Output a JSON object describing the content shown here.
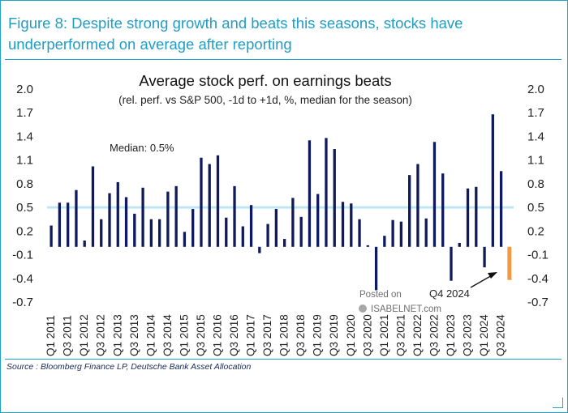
{
  "figure_title": "Figure 8: Despite strong growth and beats this seasons, stocks have underperformed on average after reporting",
  "source_note": "Source : Bloomberg Finance LP, Deutsche Bank Asset Allocation",
  "watermark": {
    "line1": "Posted on",
    "line2": "ISABELNET.com"
  },
  "colors": {
    "accent": "#1f9ec4",
    "bar": "#0f1a5c",
    "highlight_bar": "#f39a3a",
    "median_line": "#bfe6f3"
  },
  "chart_data": {
    "type": "bar",
    "title": "Average stock perf.  on earnings beats",
    "subtitle": "(rel. perf. vs S&P 500, -1d to +1d, %, median for the season)",
    "ylim": [
      -0.7,
      2.0
    ],
    "yticks": [
      "2.0",
      "1.7",
      "1.4",
      "1.1",
      "0.8",
      "0.5",
      "0.2",
      "-0.1",
      "-0.4",
      "-0.7"
    ],
    "ytick_values": [
      2.0,
      1.7,
      1.4,
      1.1,
      0.8,
      0.5,
      0.2,
      -0.1,
      -0.4,
      -0.7
    ],
    "median": {
      "value": 0.5,
      "label": "Median: 0.5%"
    },
    "highlight": {
      "index": 55,
      "label": "Q4 2024"
    },
    "xtick_labels": [
      "Q1 2011",
      "Q3 2011",
      "Q1 2012",
      "Q3 2012",
      "Q1 2013",
      "Q3 2013",
      "Q1 2014",
      "Q3 2014",
      "Q1 2015",
      "Q3 2015",
      "Q1 2016",
      "Q3 2016",
      "Q1 2017",
      "Q3 2017",
      "Q1 2018",
      "Q3 2018",
      "Q1 2019",
      "Q3 2019",
      "Q1 2020",
      "Q3 2020",
      "Q1 2021",
      "Q3 2021",
      "Q1 2022",
      "Q3 2022",
      "Q1 2023",
      "Q3 2023",
      "Q1 2024",
      "Q3 2024"
    ],
    "categories": [
      "Q1 2011",
      "Q2 2011",
      "Q3 2011",
      "Q4 2011",
      "Q1 2012",
      "Q2 2012",
      "Q3 2012",
      "Q4 2012",
      "Q1 2013",
      "Q2 2013",
      "Q3 2013",
      "Q4 2013",
      "Q1 2014",
      "Q2 2014",
      "Q3 2014",
      "Q4 2014",
      "Q1 2015",
      "Q2 2015",
      "Q3 2015",
      "Q4 2015",
      "Q1 2016",
      "Q2 2016",
      "Q3 2016",
      "Q4 2016",
      "Q1 2017",
      "Q2 2017",
      "Q3 2017",
      "Q4 2017",
      "Q1 2018",
      "Q2 2018",
      "Q3 2018",
      "Q4 2018",
      "Q1 2019",
      "Q2 2019",
      "Q3 2019",
      "Q4 2019",
      "Q1 2020",
      "Q2 2020",
      "Q3 2020",
      "Q4 2020",
      "Q1 2021",
      "Q2 2021",
      "Q3 2021",
      "Q4 2021",
      "Q1 2022",
      "Q2 2022",
      "Q3 2022",
      "Q4 2022",
      "Q1 2023",
      "Q2 2023",
      "Q3 2023",
      "Q4 2023",
      "Q1 2024",
      "Q2 2024",
      "Q3 2024",
      "Q4 2024"
    ],
    "values": [
      0.27,
      0.56,
      0.56,
      0.72,
      0.08,
      1.02,
      0.35,
      0.68,
      0.82,
      0.63,
      0.42,
      0.75,
      0.35,
      0.35,
      0.7,
      0.77,
      0.19,
      0.48,
      1.13,
      1.05,
      1.16,
      0.37,
      0.77,
      0.26,
      0.53,
      -0.08,
      0.29,
      0.48,
      0.1,
      0.62,
      0.38,
      1.35,
      0.67,
      1.38,
      1.24,
      0.57,
      0.55,
      0.35,
      0.02,
      -0.55,
      0.14,
      0.34,
      0.32,
      0.91,
      1.05,
      0.36,
      1.33,
      0.93,
      -0.43,
      0.05,
      0.74,
      0.76,
      -0.26,
      1.68,
      0.96,
      -0.42
    ]
  }
}
